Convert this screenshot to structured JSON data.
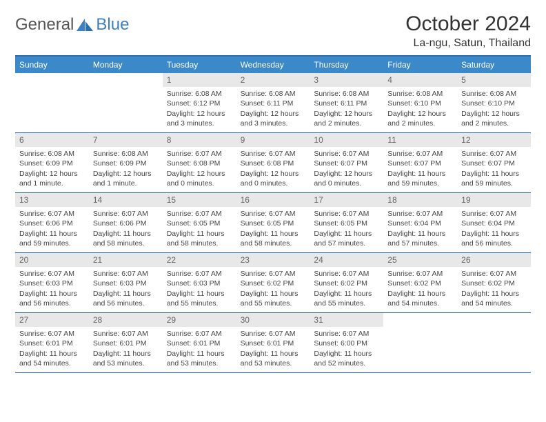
{
  "logo": {
    "text1": "General",
    "text2": "Blue"
  },
  "title": "October 2024",
  "location": "La-ngu, Satun, Thailand",
  "colors": {
    "header_bg": "#3b89c9",
    "border": "#2a6db0",
    "daynum_bg": "#e8e8e8",
    "logo_blue": "#3b7fc4"
  },
  "day_names": [
    "Sunday",
    "Monday",
    "Tuesday",
    "Wednesday",
    "Thursday",
    "Friday",
    "Saturday"
  ],
  "weeks": [
    [
      {
        "num": "",
        "sr": "",
        "ss": "",
        "dl": ""
      },
      {
        "num": "",
        "sr": "",
        "ss": "",
        "dl": ""
      },
      {
        "num": "1",
        "sr": "6:08 AM",
        "ss": "6:12 PM",
        "dl": "12 hours and 3 minutes."
      },
      {
        "num": "2",
        "sr": "6:08 AM",
        "ss": "6:11 PM",
        "dl": "12 hours and 3 minutes."
      },
      {
        "num": "3",
        "sr": "6:08 AM",
        "ss": "6:11 PM",
        "dl": "12 hours and 2 minutes."
      },
      {
        "num": "4",
        "sr": "6:08 AM",
        "ss": "6:10 PM",
        "dl": "12 hours and 2 minutes."
      },
      {
        "num": "5",
        "sr": "6:08 AM",
        "ss": "6:10 PM",
        "dl": "12 hours and 2 minutes."
      }
    ],
    [
      {
        "num": "6",
        "sr": "6:08 AM",
        "ss": "6:09 PM",
        "dl": "12 hours and 1 minute."
      },
      {
        "num": "7",
        "sr": "6:08 AM",
        "ss": "6:09 PM",
        "dl": "12 hours and 1 minute."
      },
      {
        "num": "8",
        "sr": "6:07 AM",
        "ss": "6:08 PM",
        "dl": "12 hours and 0 minutes."
      },
      {
        "num": "9",
        "sr": "6:07 AM",
        "ss": "6:08 PM",
        "dl": "12 hours and 0 minutes."
      },
      {
        "num": "10",
        "sr": "6:07 AM",
        "ss": "6:07 PM",
        "dl": "12 hours and 0 minutes."
      },
      {
        "num": "11",
        "sr": "6:07 AM",
        "ss": "6:07 PM",
        "dl": "11 hours and 59 minutes."
      },
      {
        "num": "12",
        "sr": "6:07 AM",
        "ss": "6:07 PM",
        "dl": "11 hours and 59 minutes."
      }
    ],
    [
      {
        "num": "13",
        "sr": "6:07 AM",
        "ss": "6:06 PM",
        "dl": "11 hours and 59 minutes."
      },
      {
        "num": "14",
        "sr": "6:07 AM",
        "ss": "6:06 PM",
        "dl": "11 hours and 58 minutes."
      },
      {
        "num": "15",
        "sr": "6:07 AM",
        "ss": "6:05 PM",
        "dl": "11 hours and 58 minutes."
      },
      {
        "num": "16",
        "sr": "6:07 AM",
        "ss": "6:05 PM",
        "dl": "11 hours and 58 minutes."
      },
      {
        "num": "17",
        "sr": "6:07 AM",
        "ss": "6:05 PM",
        "dl": "11 hours and 57 minutes."
      },
      {
        "num": "18",
        "sr": "6:07 AM",
        "ss": "6:04 PM",
        "dl": "11 hours and 57 minutes."
      },
      {
        "num": "19",
        "sr": "6:07 AM",
        "ss": "6:04 PM",
        "dl": "11 hours and 56 minutes."
      }
    ],
    [
      {
        "num": "20",
        "sr": "6:07 AM",
        "ss": "6:03 PM",
        "dl": "11 hours and 56 minutes."
      },
      {
        "num": "21",
        "sr": "6:07 AM",
        "ss": "6:03 PM",
        "dl": "11 hours and 56 minutes."
      },
      {
        "num": "22",
        "sr": "6:07 AM",
        "ss": "6:03 PM",
        "dl": "11 hours and 55 minutes."
      },
      {
        "num": "23",
        "sr": "6:07 AM",
        "ss": "6:02 PM",
        "dl": "11 hours and 55 minutes."
      },
      {
        "num": "24",
        "sr": "6:07 AM",
        "ss": "6:02 PM",
        "dl": "11 hours and 55 minutes."
      },
      {
        "num": "25",
        "sr": "6:07 AM",
        "ss": "6:02 PM",
        "dl": "11 hours and 54 minutes."
      },
      {
        "num": "26",
        "sr": "6:07 AM",
        "ss": "6:02 PM",
        "dl": "11 hours and 54 minutes."
      }
    ],
    [
      {
        "num": "27",
        "sr": "6:07 AM",
        "ss": "6:01 PM",
        "dl": "11 hours and 54 minutes."
      },
      {
        "num": "28",
        "sr": "6:07 AM",
        "ss": "6:01 PM",
        "dl": "11 hours and 53 minutes."
      },
      {
        "num": "29",
        "sr": "6:07 AM",
        "ss": "6:01 PM",
        "dl": "11 hours and 53 minutes."
      },
      {
        "num": "30",
        "sr": "6:07 AM",
        "ss": "6:01 PM",
        "dl": "11 hours and 53 minutes."
      },
      {
        "num": "31",
        "sr": "6:07 AM",
        "ss": "6:00 PM",
        "dl": "11 hours and 52 minutes."
      },
      {
        "num": "",
        "sr": "",
        "ss": "",
        "dl": ""
      },
      {
        "num": "",
        "sr": "",
        "ss": "",
        "dl": ""
      }
    ]
  ],
  "labels": {
    "sunrise": "Sunrise:",
    "sunset": "Sunset:",
    "daylight": "Daylight:"
  }
}
